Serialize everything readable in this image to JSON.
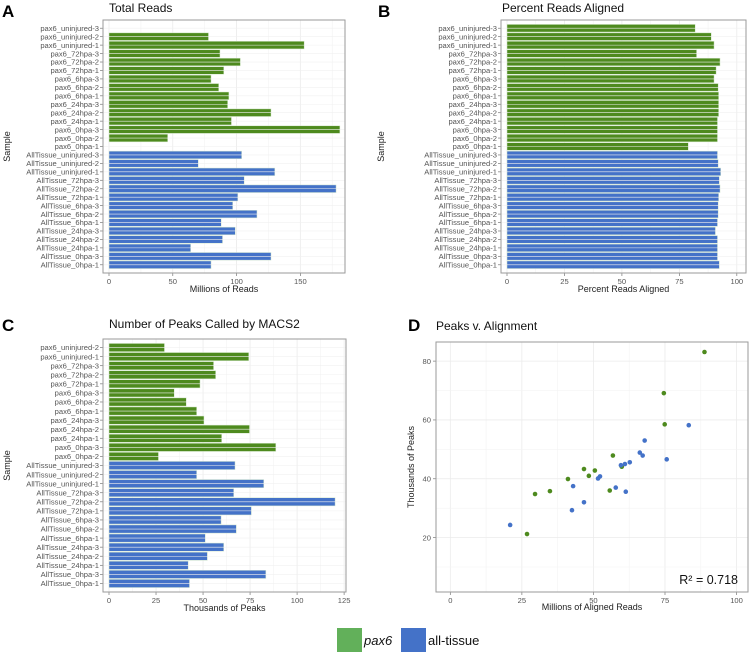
{
  "colors": {
    "pax6": "#4e8a1e",
    "all_tissue": "#4472c8",
    "legend_pax6": "#62b05a",
    "legend_all_tissue": "#4472c8"
  },
  "legend": {
    "items": [
      {
        "label": "pax6",
        "key": "pax6",
        "italic": true
      },
      {
        "label": "all-tissue",
        "key": "all_tissue",
        "italic": false
      }
    ]
  },
  "chart_data": [
    {
      "panel": "A",
      "type": "bar",
      "orientation": "horizontal",
      "title": "Total Reads",
      "xlabel": "Millions of Reads",
      "ylabel": "Sample",
      "xlim": [
        0,
        185
      ],
      "xticks": [
        0,
        50,
        100,
        150
      ],
      "grid": true,
      "categories": [
        "pax6_uninjured-3",
        "pax6_uninjured-2",
        "pax6_uninjured-1",
        "pax6_72hpa-3",
        "pax6_72hpa-2",
        "pax6_72hpa-1",
        "pax6_6hpa-3",
        "pax6_6hpa-2",
        "pax6_6hpa-1",
        "pax6_24hpa-3",
        "pax6_24hpa-2",
        "pax6_24hpa-1",
        "pax6_0hpa-3",
        "pax6_0hpa-2",
        "pax6_0hpa-1",
        "AllTissue_uninjured-3",
        "AllTissue_uninjured-2",
        "AllTissue_uninjured-1",
        "AllTissue_72hpa-3",
        "AllTissue_72hpa-2",
        "AllTissue_72hpa-1",
        "AllTissue_6hpa-3",
        "AllTissue_6hpa-2",
        "AllTissue_6hpa-1",
        "AllTissue_24hpa-3",
        "AllTissue_24hpa-2",
        "AllTissue_24hpa-1",
        "AllTissue_0hpa-3",
        "AllTissue_0hpa-1"
      ],
      "values": [
        0,
        78,
        153,
        87,
        103,
        90,
        80,
        86,
        94,
        93,
        127,
        96,
        181,
        46,
        0,
        104,
        70,
        130,
        106,
        178,
        101,
        97,
        116,
        88,
        99,
        89,
        64,
        127,
        80
      ],
      "groups": [
        "pax6",
        "pax6",
        "pax6",
        "pax6",
        "pax6",
        "pax6",
        "pax6",
        "pax6",
        "pax6",
        "pax6",
        "pax6",
        "pax6",
        "pax6",
        "pax6",
        "pax6",
        "all_tissue",
        "all_tissue",
        "all_tissue",
        "all_tissue",
        "all_tissue",
        "all_tissue",
        "all_tissue",
        "all_tissue",
        "all_tissue",
        "all_tissue",
        "all_tissue",
        "all_tissue",
        "all_tissue",
        "all_tissue"
      ]
    },
    {
      "panel": "B",
      "type": "bar",
      "orientation": "horizontal",
      "title": "Percent Reads Aligned",
      "xlabel": "Percent Reads Aligned",
      "ylabel": "Sample",
      "xlim": [
        0,
        104
      ],
      "xticks": [
        0,
        25,
        50,
        75,
        100
      ],
      "grid": true,
      "categories": [
        "pax6_uninjured-3",
        "pax6_uninjured-2",
        "pax6_uninjured-1",
        "pax6_72hpa-3",
        "pax6_72hpa-2",
        "pax6_72hpa-1",
        "pax6_6hpa-3",
        "pax6_6hpa-2",
        "pax6_6hpa-1",
        "pax6_24hpa-3",
        "pax6_24hpa-2",
        "pax6_24hpa-1",
        "pax6_0hpa-3",
        "pax6_0hpa-2",
        "pax6_0hpa-1",
        "AllTissue_uninjured-3",
        "AllTissue_uninjured-2",
        "AllTissue_uninjured-1",
        "AllTissue_72hpa-3",
        "AllTissue_72hpa-2",
        "AllTissue_72hpa-1",
        "AllTissue_6hpa-3",
        "AllTissue_6hpa-2",
        "AllTissue_6hpa-1",
        "AllTissue_24hpa-3",
        "AllTissue_24hpa-2",
        "AllTissue_24hpa-1",
        "AllTissue_0hpa-3",
        "AllTissue_0hpa-1"
      ],
      "values": [
        81.9,
        88.9,
        90.1,
        82.5,
        92.7,
        91.0,
        90.1,
        91.9,
        92.1,
        92.1,
        92.1,
        91.6,
        91.6,
        91.6,
        78.9,
        91.6,
        91.9,
        93.0,
        92.4,
        92.7,
        92.1,
        91.9,
        91.9,
        91.6,
        90.7,
        91.6,
        91.6,
        91.6,
        92.4
      ],
      "groups": [
        "pax6",
        "pax6",
        "pax6",
        "pax6",
        "pax6",
        "pax6",
        "pax6",
        "pax6",
        "pax6",
        "pax6",
        "pax6",
        "pax6",
        "pax6",
        "pax6",
        "pax6",
        "all_tissue",
        "all_tissue",
        "all_tissue",
        "all_tissue",
        "all_tissue",
        "all_tissue",
        "all_tissue",
        "all_tissue",
        "all_tissue",
        "all_tissue",
        "all_tissue",
        "all_tissue",
        "all_tissue",
        "all_tissue"
      ]
    },
    {
      "panel": "C",
      "type": "bar",
      "orientation": "horizontal",
      "title": "Number of Peaks Called by MACS2",
      "xlabel": "Thousands of Peaks",
      "ylabel": "Sample",
      "xlim": [
        0,
        126
      ],
      "xticks": [
        0,
        25,
        50,
        75,
        100,
        125
      ],
      "grid": true,
      "categories": [
        "pax6_uninjured-2",
        "pax6_uninjured-1",
        "pax6_72hpa-3",
        "pax6_72hpa-2",
        "pax6_72hpa-1",
        "pax6_6hpa-3",
        "pax6_6hpa-2",
        "pax6_6hpa-1",
        "pax6_24hpa-3",
        "pax6_24hpa-2",
        "pax6_24hpa-1",
        "pax6_0hpa-3",
        "pax6_0hpa-2",
        "AllTissue_uninjured-3",
        "AllTissue_uninjured-2",
        "AllTissue_uninjured-1",
        "AllTissue_72hpa-3",
        "AllTissue_72hpa-2",
        "AllTissue_72hpa-1",
        "AllTissue_6hpa-3",
        "AllTissue_6hpa-2",
        "AllTissue_6hpa-1",
        "AllTissue_24hpa-3",
        "AllTissue_24hpa-2",
        "AllTissue_24hpa-1",
        "AllTissue_0hpa-3",
        "AllTissue_0hpa-1"
      ],
      "values": [
        29.5,
        74.3,
        55.6,
        56.7,
        48.4,
        34.7,
        41.1,
        46.6,
        50.5,
        74.7,
        59.9,
        88.7,
        26.3,
        67.0,
        46.6,
        82.3,
        66.3,
        120.2,
        75.7,
        59.6,
        67.7,
        51.2,
        61.0,
        52.3,
        42.1,
        83.4,
        42.8
      ],
      "groups": [
        "pax6",
        "pax6",
        "pax6",
        "pax6",
        "pax6",
        "pax6",
        "pax6",
        "pax6",
        "pax6",
        "pax6",
        "pax6",
        "pax6",
        "pax6",
        "all_tissue",
        "all_tissue",
        "all_tissue",
        "all_tissue",
        "all_tissue",
        "all_tissue",
        "all_tissue",
        "all_tissue",
        "all_tissue",
        "all_tissue",
        "all_tissue",
        "all_tissue",
        "all_tissue",
        "all_tissue"
      ]
    },
    {
      "panel": "D",
      "type": "scatter",
      "title": "Peaks v. Alignment",
      "xlabel": "Millions of Aligned Reads",
      "ylabel": "Thousands of Peaks",
      "xlim": [
        -5,
        104
      ],
      "ylim": [
        1.5,
        86.5
      ],
      "xticks": [
        0,
        25,
        50,
        75,
        100
      ],
      "yticks": [
        20,
        40,
        60,
        80
      ],
      "grid": true,
      "annotation": {
        "text": "R² = 0.718",
        "r_squared": "0.718",
        "position": "bottom-right"
      },
      "series": [
        {
          "name": "pax6",
          "key": "pax6",
          "points": [
            [
              88.8,
              83.1
            ],
            [
              74.6,
              69.1
            ],
            [
              74.9,
              58.5
            ],
            [
              56.8,
              47.9
            ],
            [
              59.9,
              44.1
            ],
            [
              50.5,
              42.8
            ],
            [
              46.7,
              43.3
            ],
            [
              48.4,
              41.0
            ],
            [
              41.1,
              39.9
            ],
            [
              55.7,
              36.0
            ],
            [
              34.8,
              35.8
            ],
            [
              29.6,
              34.8
            ],
            [
              26.8,
              21.2
            ]
          ]
        },
        {
          "name": "all-tissue",
          "key": "all_tissue",
          "points": [
            [
              83.3,
              58.2
            ],
            [
              67.9,
              53.0
            ],
            [
              66.2,
              48.9
            ],
            [
              67.2,
              47.9
            ],
            [
              75.6,
              46.6
            ],
            [
              59.6,
              44.6
            ],
            [
              61.0,
              45.0
            ],
            [
              62.7,
              45.6
            ],
            [
              51.6,
              40.1
            ],
            [
              52.3,
              40.8
            ],
            [
              42.9,
              37.5
            ],
            [
              57.8,
              37.0
            ],
            [
              61.3,
              35.6
            ],
            [
              46.7,
              32.0
            ],
            [
              42.5,
              29.3
            ],
            [
              20.9,
              24.3
            ]
          ]
        }
      ]
    }
  ]
}
